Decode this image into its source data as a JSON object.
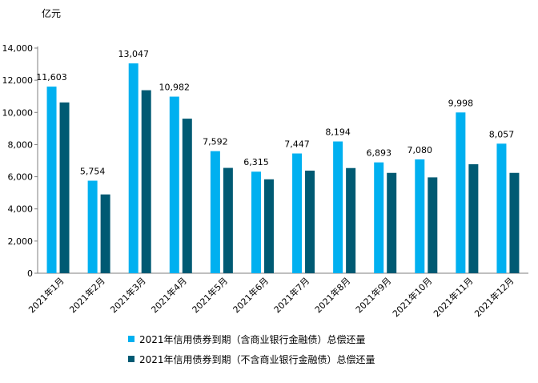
{
  "chart_data": {
    "type": "bar",
    "unit_label": "亿元",
    "categories": [
      "2021年1月",
      "2021年2月",
      "2021年3月",
      "2021年4月",
      "2021年5月",
      "2021年6月",
      "2021年7月",
      "2021年8月",
      "2021年9月",
      "2021年10月",
      "2021年11月",
      "2021年12月"
    ],
    "series": [
      {
        "name": "2021年信用债券到期（含商业银行金融债）总偿还量",
        "color": "#00B0F0",
        "values": [
          11603,
          5754,
          13047,
          10982,
          7592,
          6315,
          7447,
          8194,
          6893,
          7080,
          9998,
          8057
        ],
        "data_labels": [
          "11,603",
          "5,754",
          "13,047",
          "10,982",
          "7,592",
          "6,315",
          "7,447",
          "8,194",
          "6,893",
          "7,080",
          "9,998",
          "8,057"
        ]
      },
      {
        "name": "2021年信用债券到期（不含商业银行金融债）总偿还量",
        "color": "#005A73",
        "values": [
          10620,
          4900,
          11380,
          9610,
          6550,
          5840,
          6380,
          6540,
          6240,
          5960,
          6780,
          6240
        ]
      }
    ],
    "ylim": [
      0,
      14000
    ],
    "yticks": [
      0,
      2000,
      4000,
      6000,
      8000,
      10000,
      12000,
      14000
    ],
    "ytick_labels": [
      "0",
      "2,000",
      "4,000",
      "6,000",
      "8,000",
      "10,000",
      "12,000",
      "14,000"
    ],
    "grid": false,
    "legend": "bottom"
  }
}
